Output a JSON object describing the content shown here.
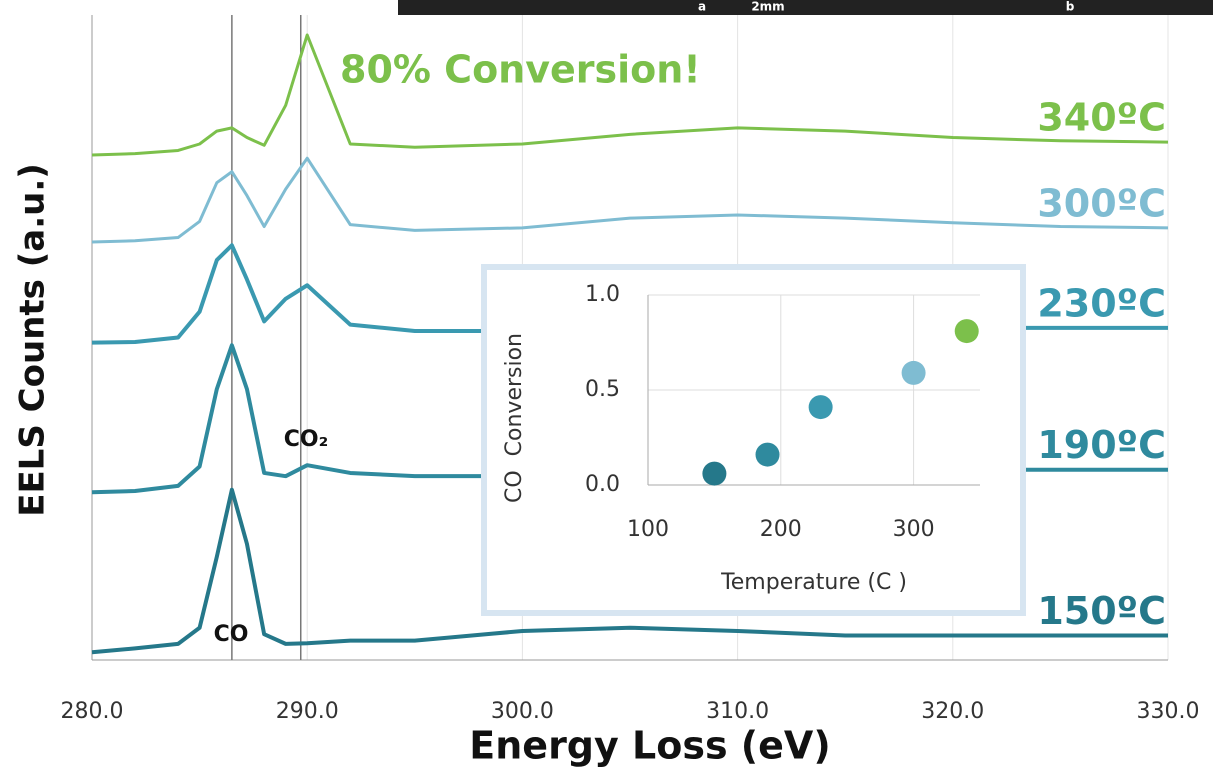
{
  "photo_strip": {
    "labels": [
      "a",
      "2mm",
      "b"
    ]
  },
  "chart_data": [
    {
      "type": "line",
      "axis_labels": {
        "y": "EELS Counts (a.u.)",
        "x": "Energy Loss (eV)"
      },
      "annotations": {
        "conversion": "80% Conversion!",
        "co": "CO",
        "co2": "CO₂"
      },
      "vlines": [
        286.5,
        289.7
      ],
      "xlim": [
        280,
        330
      ],
      "xticks": [
        {
          "value": 280,
          "label": "280.0"
        },
        {
          "value": 290,
          "label": "290.0"
        },
        {
          "value": 300,
          "label": "300.0"
        },
        {
          "value": 310,
          "label": "310.0"
        },
        {
          "value": 320,
          "label": "320.0"
        },
        {
          "value": 330,
          "label": "330.0"
        }
      ],
      "ylim": [
        0,
        10
      ],
      "x": [
        280,
        282,
        284,
        285,
        285.8,
        286.5,
        287.2,
        288,
        289,
        290,
        292,
        295,
        300,
        305,
        310,
        315,
        320,
        325,
        330
      ],
      "series": [
        {
          "name": "150ºC",
          "color": "#25788a",
          "values": [
            0.12,
            0.18,
            0.25,
            0.5,
            1.6,
            2.64,
            1.8,
            0.4,
            0.25,
            0.26,
            0.3,
            0.3,
            0.45,
            0.5,
            0.45,
            0.38,
            0.38,
            0.38,
            0.38
          ]
        },
        {
          "name": "190ºC",
          "color": "#2f8a9e",
          "values": [
            2.6,
            2.62,
            2.7,
            3.0,
            4.2,
            4.88,
            4.2,
            2.9,
            2.85,
            3.02,
            2.9,
            2.85,
            2.85,
            2.9,
            2.92,
            2.95,
            2.95,
            2.95,
            2.95
          ]
        },
        {
          "name": "230ºC",
          "color": "#3a99b0",
          "values": [
            4.92,
            4.93,
            5.0,
            5.4,
            6.2,
            6.43,
            5.9,
            5.25,
            5.6,
            5.81,
            5.2,
            5.1,
            5.1,
            5.12,
            5.13,
            5.15,
            5.15,
            5.15,
            5.15
          ]
        },
        {
          "name": "300ºC",
          "color": "#7fbcd2",
          "values": [
            6.48,
            6.5,
            6.55,
            6.8,
            7.4,
            7.57,
            7.2,
            6.72,
            7.3,
            7.78,
            6.75,
            6.66,
            6.7,
            6.85,
            6.9,
            6.85,
            6.78,
            6.72,
            6.7
          ]
        },
        {
          "name": "340ºC",
          "color": "#7cc04b",
          "values": [
            7.83,
            7.85,
            7.9,
            8.0,
            8.2,
            8.25,
            8.1,
            7.98,
            8.6,
            9.69,
            8.0,
            7.95,
            8.0,
            8.15,
            8.25,
            8.2,
            8.1,
            8.05,
            8.03
          ]
        }
      ]
    },
    {
      "type": "scatter",
      "axis_labels": {
        "x": "Temperature (C )",
        "y": "CO  Conversion"
      },
      "xlim": [
        100,
        350
      ],
      "xticks": [
        100,
        200,
        300
      ],
      "ylim": [
        0,
        1
      ],
      "yticks": [
        {
          "value": 0,
          "label": "0.0"
        },
        0.5,
        {
          "value": 1,
          "label": "1.0"
        }
      ],
      "grid": true,
      "x": [
        150,
        190,
        230,
        300,
        340
      ],
      "values": [
        0.06,
        0.16,
        0.41,
        0.59,
        0.81
      ],
      "colors": [
        "#25788a",
        "#2f8a9e",
        "#3a99b0",
        "#7fbcd2",
        "#7cc04b"
      ]
    }
  ]
}
